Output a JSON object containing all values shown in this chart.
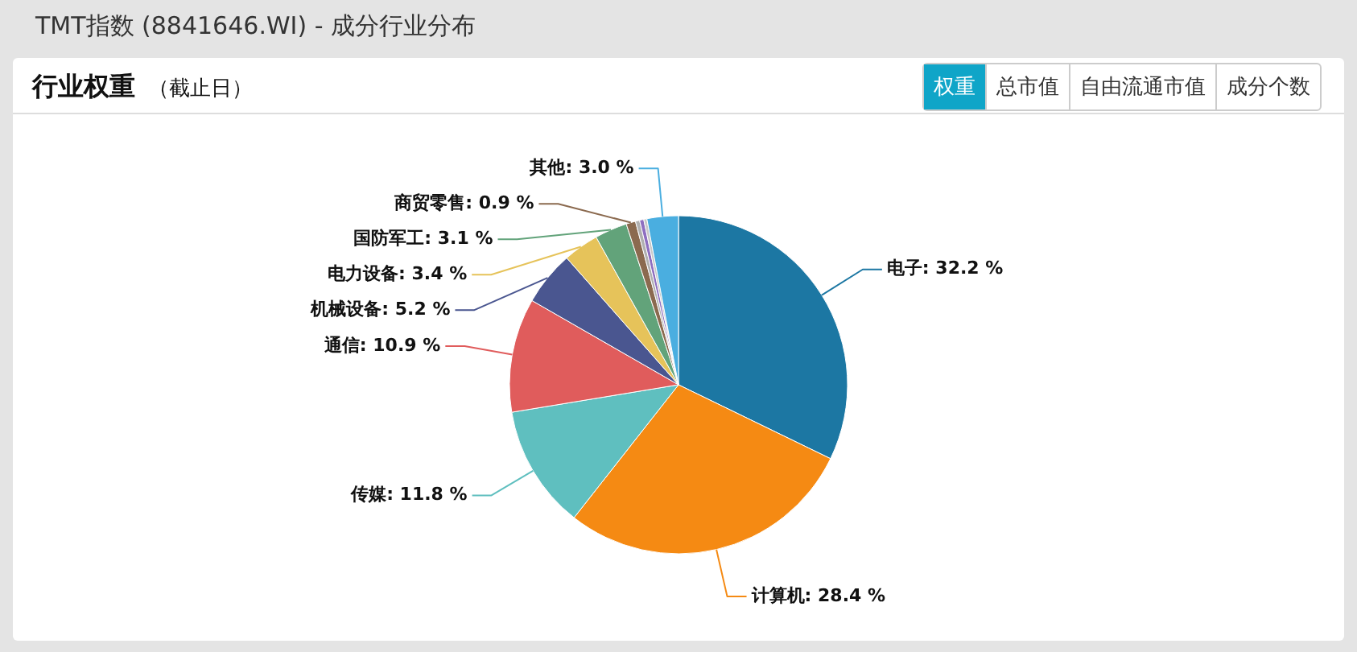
{
  "chart_data": {
    "type": "pie",
    "title": "TMT指数 (8841646.WI) - 成分行业分布",
    "subtitle": "行业权重",
    "annotations": [
      "（截止日）",
      "权重",
      "总市值",
      "自由流通市值",
      "成分个数"
    ],
    "categories": [
      "电子",
      "计算机",
      "传媒",
      "通信",
      "机械设备",
      "电力设备",
      "国防军工",
      "商贸零售",
      null,
      null,
      null,
      "其他"
    ],
    "values": [
      32.2,
      28.4,
      11.8,
      10.9,
      5.2,
      3.4,
      3.1,
      0.9,
      0.4,
      0.4,
      0.3,
      3.0
    ],
    "value_labels": [
      "32.2 %",
      "28.4 %",
      "11.8 %",
      "10.9 %",
      "5.2 %",
      "3.4 %",
      "3.1 %",
      "0.9 %",
      null,
      null,
      null,
      "3.0 %"
    ],
    "colors": [
      "#1c77a3",
      "#f58a13",
      "#5fbfbf",
      "#e05c5c",
      "#4a5690",
      "#e6c35a",
      "#62a37a",
      "#8b6a4f",
      "#b0b0b0",
      "#8e6fc0",
      "#c8c8c8",
      "#4aaee0"
    ],
    "legend": false
  }
}
